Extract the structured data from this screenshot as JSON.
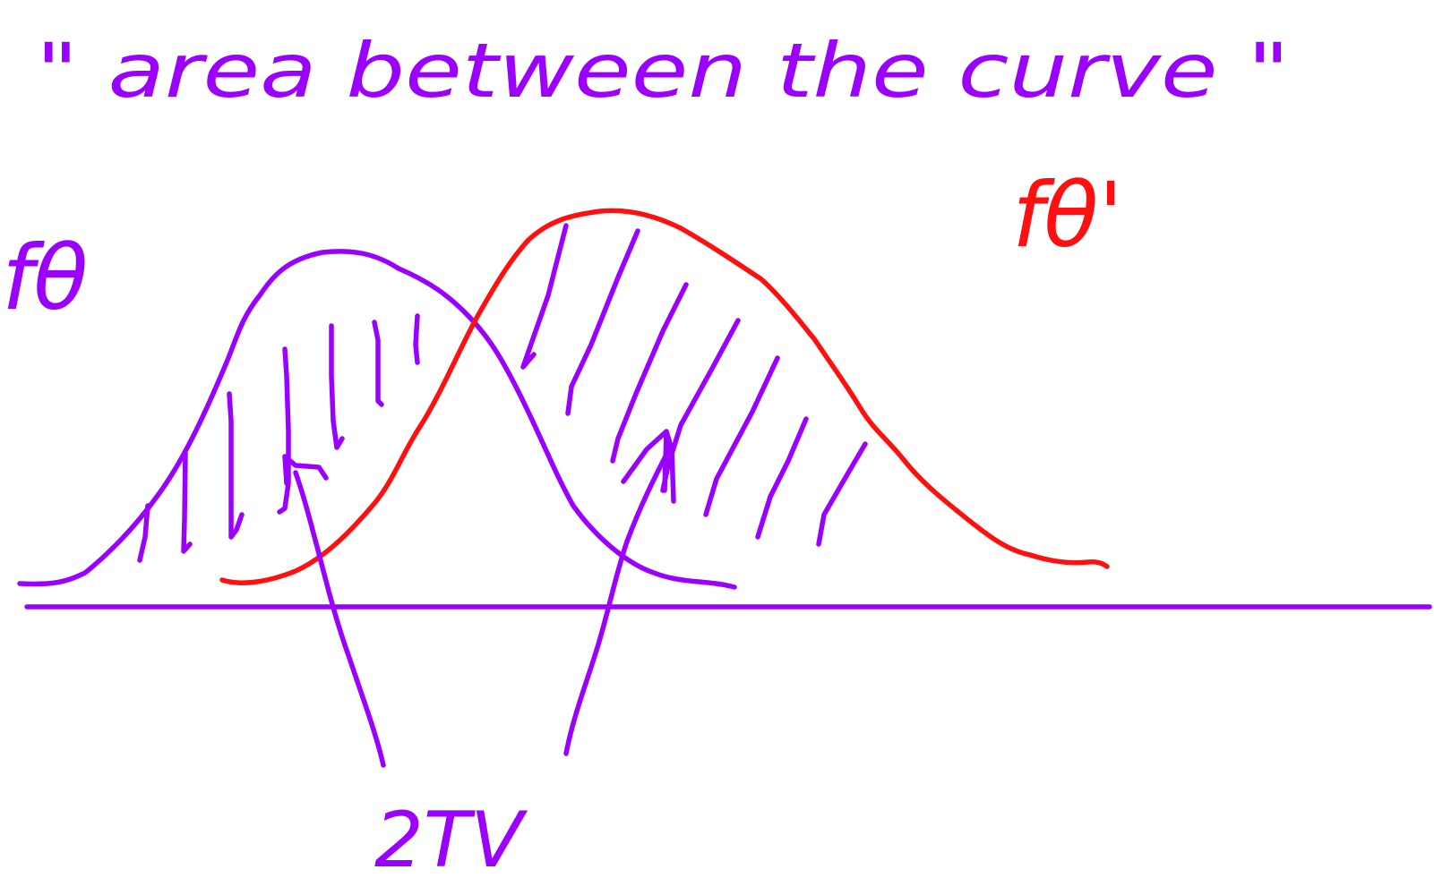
{
  "title": "\" area between the curve \"",
  "labels": {
    "left_curve": "fθ",
    "right_curve": "fθ'",
    "arrow_target": "2TV"
  },
  "colors": {
    "ink_purple": "#9b00ff",
    "ink_red": "#ff1010",
    "background": "#ffffff"
  }
}
